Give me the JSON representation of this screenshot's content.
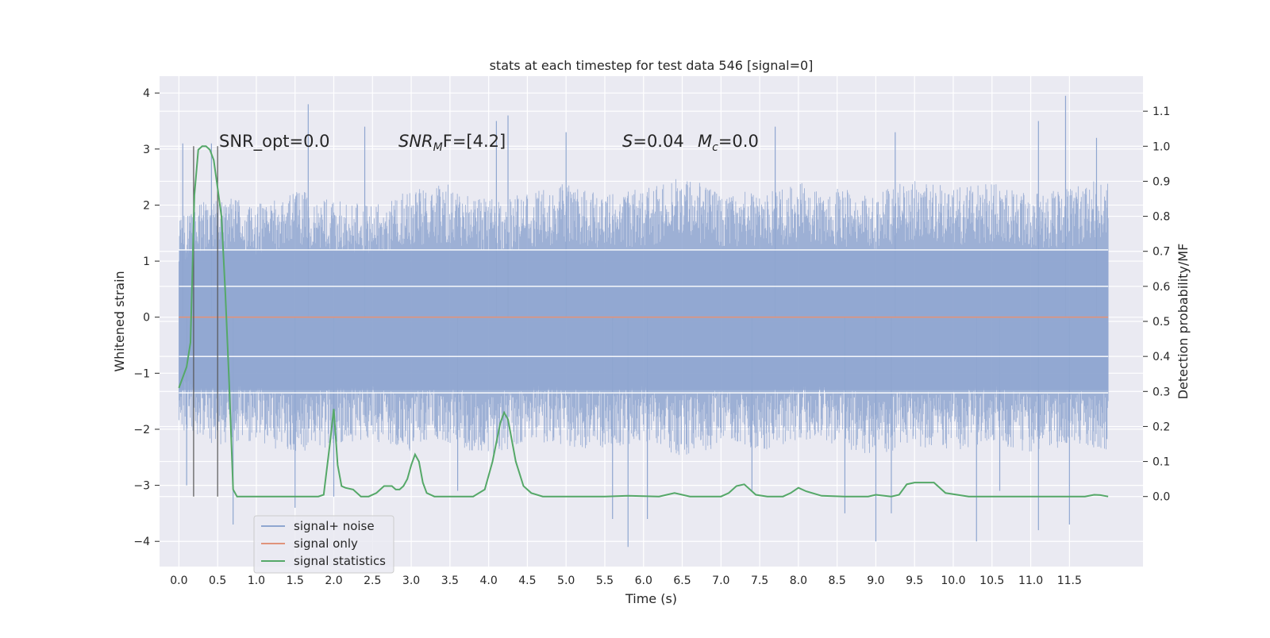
{
  "chart_data": {
    "type": "line",
    "title": "stats at each timestep for test data 546 [signal=0]",
    "xlabel": "Time (s)",
    "ylabel_left": "Whitened strain",
    "ylabel_right": "Detection probability/MF",
    "xlim": [
      -0.25,
      12.45
    ],
    "ylim_left": [
      -4.45,
      4.3
    ],
    "ylim_right": [
      -0.2,
      1.2
    ],
    "xticks": [
      "0.0",
      "0.5",
      "1.0",
      "1.5",
      "2.0",
      "2.5",
      "3.0",
      "3.5",
      "4.0",
      "4.5",
      "5.0",
      "5.5",
      "6.0",
      "6.5",
      "7.0",
      "7.5",
      "8.0",
      "8.5",
      "9.0",
      "9.5",
      "10.0",
      "10.5",
      "11.0",
      "11.5"
    ],
    "yticks_left": [
      "4",
      "3",
      "2",
      "1",
      "0",
      "−1",
      "−2",
      "−3",
      "−4"
    ],
    "yticks_right": [
      "1.1",
      "1.0",
      "0.9",
      "0.8",
      "0.7",
      "0.6",
      "0.5",
      "0.4",
      "0.3",
      "0.2",
      "0.1",
      "0.0"
    ],
    "grid": true,
    "legend_position": "lower-left",
    "annotations": {
      "snr_opt": "SNR_opt=0.0",
      "snr_mf": "SNR",
      "snr_mf_sub": "M",
      "snr_mf_rest": "F=[4.2]",
      "s_label": "S",
      "s_rest": "=0.04",
      "mc_label": "M",
      "mc_sub": "c",
      "mc_rest": "=0.0"
    },
    "noise_envelope": {
      "t_range": [
        0.0,
        12.0
      ],
      "upper": [
        1.8,
        2.2,
        2.0,
        2.3,
        2.1,
        2.0,
        2.3,
        2.4,
        2.1,
        2.2,
        2.4,
        2.2,
        2.3,
        2.5,
        2.3,
        2.2,
        2.4,
        2.3,
        2.2,
        2.5,
        2.3,
        2.4,
        2.2,
        2.3,
        2.5
      ],
      "lower": [
        -2.0,
        -2.3,
        -2.2,
        -2.5,
        -2.3,
        -2.2,
        -2.4,
        -2.3,
        -2.5,
        -2.2,
        -2.3,
        -2.4,
        -2.2,
        -2.5,
        -2.3,
        -2.4,
        -2.2,
        -2.3,
        -2.5,
        -2.3,
        -2.4,
        -2.2,
        -2.5,
        -2.3,
        -2.4
      ],
      "spikes": [
        {
          "t": 0.05,
          "v": 3.1
        },
        {
          "t": 0.42,
          "v": 3.1
        },
        {
          "t": 1.67,
          "v": 3.8
        },
        {
          "t": 2.4,
          "v": 3.4
        },
        {
          "t": 4.1,
          "v": 3.5
        },
        {
          "t": 4.25,
          "v": 3.6
        },
        {
          "t": 5.0,
          "v": 3.3
        },
        {
          "t": 7.7,
          "v": 3.4
        },
        {
          "t": 9.25,
          "v": 3.3
        },
        {
          "t": 11.1,
          "v": 3.5
        },
        {
          "t": 11.45,
          "v": 3.95
        },
        {
          "t": 11.85,
          "v": 3.2
        },
        {
          "t": 0.7,
          "v": -3.7
        },
        {
          "t": 1.5,
          "v": -3.4
        },
        {
          "t": 5.8,
          "v": -4.1
        },
        {
          "t": 5.6,
          "v": -3.6
        },
        {
          "t": 6.05,
          "v": -3.6
        },
        {
          "t": 8.6,
          "v": -3.5
        },
        {
          "t": 9.0,
          "v": -4.0
        },
        {
          "t": 9.2,
          "v": -3.5
        },
        {
          "t": 10.3,
          "v": -4.0
        },
        {
          "t": 11.1,
          "v": -3.8
        },
        {
          "t": 11.5,
          "v": -3.7
        },
        {
          "t": 0.1,
          "v": -3.0
        },
        {
          "t": 3.6,
          "v": -3.1
        },
        {
          "t": 7.4,
          "v": -3.1
        },
        {
          "t": 2.0,
          "v": -3.2
        },
        {
          "t": 10.6,
          "v": -3.1
        }
      ]
    },
    "series": [
      {
        "name": "signal+ noise",
        "color": "#8fa6d0",
        "style": "dense noise band"
      },
      {
        "name": "signal only",
        "color": "#e0937b",
        "x": [
          0.0,
          12.0
        ],
        "values": [
          0.0,
          0.0
        ]
      },
      {
        "name": "signal statistics",
        "color": "#55a868",
        "axis": "right",
        "x": [
          0.0,
          0.1,
          0.15,
          0.2,
          0.25,
          0.3,
          0.35,
          0.4,
          0.45,
          0.5,
          0.55,
          0.6,
          0.65,
          0.7,
          0.75,
          0.8,
          1.0,
          1.5,
          1.8,
          1.87,
          1.95,
          2.0,
          2.05,
          2.1,
          2.15,
          2.25,
          2.35,
          2.45,
          2.55,
          2.65,
          2.75,
          2.8,
          2.85,
          2.9,
          2.95,
          3.0,
          3.05,
          3.1,
          3.15,
          3.2,
          3.3,
          3.5,
          3.8,
          3.95,
          4.05,
          4.15,
          4.2,
          4.25,
          4.35,
          4.45,
          4.55,
          4.7,
          5.0,
          5.5,
          5.8,
          6.2,
          6.4,
          6.6,
          6.8,
          7.0,
          7.1,
          7.2,
          7.3,
          7.45,
          7.6,
          7.8,
          7.9,
          8.0,
          8.1,
          8.3,
          8.6,
          8.9,
          9.0,
          9.2,
          9.3,
          9.4,
          9.5,
          9.6,
          9.65,
          9.75,
          9.9,
          10.2,
          11.0,
          11.7,
          11.82,
          11.9,
          11.95,
          12.0
        ],
        "values": [
          0.31,
          0.37,
          0.44,
          0.86,
          0.99,
          1.0,
          1.0,
          0.99,
          0.96,
          0.88,
          0.8,
          0.58,
          0.32,
          0.02,
          0.0,
          0.0,
          0.0,
          0.0,
          0.0,
          0.005,
          0.15,
          0.25,
          0.09,
          0.03,
          0.025,
          0.02,
          0.0,
          0.0,
          0.01,
          0.03,
          0.03,
          0.02,
          0.02,
          0.03,
          0.05,
          0.09,
          0.12,
          0.1,
          0.04,
          0.01,
          0.0,
          0.0,
          0.0,
          0.02,
          0.1,
          0.21,
          0.24,
          0.22,
          0.1,
          0.03,
          0.01,
          0.0,
          0.0,
          0.0,
          0.002,
          0.0,
          0.01,
          0.0,
          0.0,
          0.0,
          0.01,
          0.03,
          0.035,
          0.005,
          0.0,
          0.0,
          0.01,
          0.025,
          0.015,
          0.002,
          0.0,
          0.0,
          0.005,
          0.0,
          0.005,
          0.035,
          0.04,
          0.04,
          0.04,
          0.04,
          0.01,
          0.0,
          0.0,
          0.0,
          0.005,
          0.004,
          0.002,
          0.0
        ]
      }
    ],
    "vertical_lines": [
      0.19,
      0.5
    ]
  }
}
